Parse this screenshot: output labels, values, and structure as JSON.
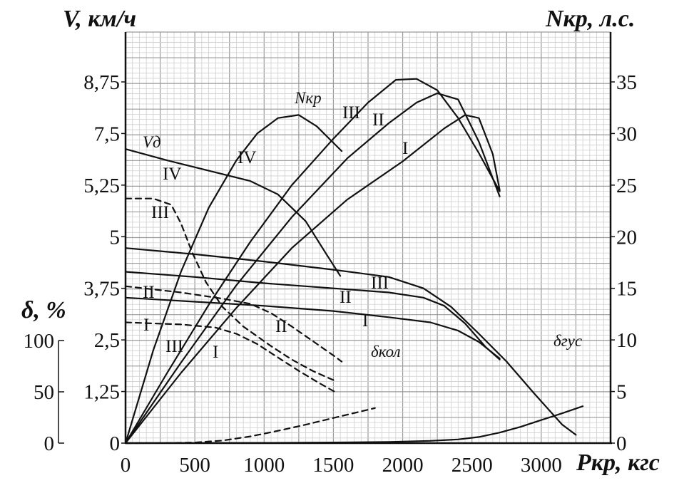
{
  "chart_data": {
    "type": "line",
    "title": "",
    "xlabel": "Pкр, кгс",
    "y_left_label": "V, км/ч",
    "y_right_label": "Nкр, л.с.",
    "delta_label": "δ, %",
    "x_ticks": [
      0,
      500,
      1000,
      1500,
      2000,
      2500,
      3000
    ],
    "x_tick_labels": [
      "0",
      "500",
      "1000",
      "1500",
      "2000",
      "2500",
      "3000"
    ],
    "v_tick_labels": [
      "0",
      "1,25",
      "2,5",
      "3,75",
      "5",
      "5,25",
      "7,5",
      "8,75"
    ],
    "n_ticks": [
      0,
      5,
      10,
      15,
      20,
      25,
      30,
      35
    ],
    "n_tick_labels": [
      "0",
      "5",
      "10",
      "15",
      "20",
      "25",
      "30",
      "35"
    ],
    "delta_ticks": [
      0,
      50,
      100
    ],
    "delta_tick_labels": [
      "0",
      "50",
      "100"
    ],
    "xlim": [
      0,
      3500
    ],
    "nlim": [
      0,
      35
    ],
    "grid": true,
    "series": [
      {
        "name": "Vд",
        "group": "V",
        "style": "solid",
        "label": "IV",
        "points": [
          [
            0,
            28.5
          ],
          [
            300,
            27.4
          ],
          [
            600,
            26.4
          ],
          [
            900,
            25.4
          ],
          [
            1100,
            24.1
          ],
          [
            1300,
            21.5
          ],
          [
            1450,
            18.3
          ],
          [
            1550,
            16.2
          ]
        ]
      },
      {
        "group": "V",
        "style": "solid",
        "label": "III",
        "points": [
          [
            0,
            18.9
          ],
          [
            500,
            18.3
          ],
          [
            1000,
            17.6
          ],
          [
            1500,
            16.8
          ],
          [
            1900,
            16.1
          ],
          [
            2150,
            15.0
          ],
          [
            2350,
            13.2
          ],
          [
            2550,
            10.6
          ],
          [
            2750,
            7.9
          ],
          [
            2950,
            4.8
          ],
          [
            3150,
            1.8
          ],
          [
            3250,
            0.8
          ]
        ]
      },
      {
        "group": "V",
        "style": "solid",
        "label": "II",
        "points": [
          [
            0,
            16.6
          ],
          [
            500,
            16.1
          ],
          [
            1000,
            15.5
          ],
          [
            1500,
            15.0
          ],
          [
            1900,
            14.6
          ],
          [
            2150,
            14.1
          ],
          [
            2300,
            13.3
          ],
          [
            2450,
            11.6
          ],
          [
            2600,
            9.3
          ],
          [
            2700,
            8.1
          ]
        ]
      },
      {
        "group": "V",
        "style": "solid",
        "label": "I",
        "points": [
          [
            0,
            14.1
          ],
          [
            500,
            13.7
          ],
          [
            1000,
            13.3
          ],
          [
            1500,
            12.8
          ],
          [
            1900,
            12.2
          ],
          [
            2200,
            11.7
          ],
          [
            2400,
            10.9
          ],
          [
            2550,
            9.8
          ],
          [
            2700,
            8.2
          ]
        ]
      },
      {
        "group": "V",
        "style": "dashed",
        "label": "III",
        "points": [
          [
            0,
            23.7
          ],
          [
            200,
            23.7
          ],
          [
            330,
            23.1
          ],
          [
            400,
            21.3
          ],
          [
            480,
            18.5
          ],
          [
            580,
            15.6
          ],
          [
            700,
            13.2
          ],
          [
            850,
            11.3
          ],
          [
            1050,
            9.4
          ],
          [
            1200,
            8.1
          ],
          [
            1350,
            7.0
          ],
          [
            1450,
            6.4
          ],
          [
            1520,
            6.0
          ]
        ]
      },
      {
        "group": "V",
        "style": "dashed",
        "label": "II",
        "points": [
          [
            0,
            15.2
          ],
          [
            400,
            14.6
          ],
          [
            700,
            14.0
          ],
          [
            900,
            13.5
          ],
          [
            1050,
            12.6
          ],
          [
            1200,
            11.3
          ],
          [
            1350,
            9.9
          ],
          [
            1500,
            8.5
          ],
          [
            1560,
            7.9
          ]
        ]
      },
      {
        "group": "V",
        "style": "dashed",
        "label": "I",
        "points": [
          [
            0,
            11.7
          ],
          [
            400,
            11.5
          ],
          [
            650,
            11.2
          ],
          [
            800,
            10.6
          ],
          [
            950,
            9.6
          ],
          [
            1100,
            8.3
          ],
          [
            1250,
            7.0
          ],
          [
            1400,
            5.8
          ],
          [
            1520,
            4.9
          ]
        ]
      },
      {
        "name": "Nкр",
        "group": "N",
        "style": "solid",
        "label": "IV",
        "points": [
          [
            0,
            0
          ],
          [
            200,
            9
          ],
          [
            400,
            16.6
          ],
          [
            600,
            22.8
          ],
          [
            800,
            27.4
          ],
          [
            950,
            30.0
          ],
          [
            1100,
            31.5
          ],
          [
            1250,
            31.8
          ],
          [
            1380,
            30.7
          ],
          [
            1500,
            29.1
          ],
          [
            1560,
            28.3
          ]
        ]
      },
      {
        "group": "N",
        "style": "solid",
        "label": "III",
        "points": [
          [
            0,
            0
          ],
          [
            300,
            6.8
          ],
          [
            600,
            13.4
          ],
          [
            900,
            19.5
          ],
          [
            1200,
            25.0
          ],
          [
            1500,
            29.5
          ],
          [
            1750,
            33.0
          ],
          [
            1950,
            35.2
          ],
          [
            2100,
            35.3
          ],
          [
            2250,
            34.2
          ],
          [
            2400,
            31.5
          ],
          [
            2550,
            28.1
          ],
          [
            2700,
            24.4
          ]
        ]
      },
      {
        "group": "N",
        "style": "solid",
        "label": "II",
        "points": [
          [
            0,
            0
          ],
          [
            400,
            7.8
          ],
          [
            800,
            15.3
          ],
          [
            1200,
            21.9
          ],
          [
            1600,
            27.6
          ],
          [
            1900,
            31.0
          ],
          [
            2100,
            33.0
          ],
          [
            2250,
            33.9
          ],
          [
            2400,
            33.3
          ],
          [
            2550,
            29.2
          ],
          [
            2700,
            23.9
          ]
        ]
      },
      {
        "group": "N",
        "style": "solid",
        "label": "I",
        "points": [
          [
            0,
            0
          ],
          [
            400,
            6.8
          ],
          [
            800,
            13.1
          ],
          [
            1200,
            18.9
          ],
          [
            1600,
            23.6
          ],
          [
            2000,
            27.3
          ],
          [
            2300,
            30.5
          ],
          [
            2450,
            31.8
          ],
          [
            2550,
            31.5
          ],
          [
            2650,
            28.0
          ],
          [
            2700,
            24.5
          ]
        ]
      },
      {
        "name": "δгус",
        "group": "delta",
        "style": "solid",
        "points": [
          [
            0,
            0
          ],
          [
            500,
            0.15
          ],
          [
            1000,
            0.3
          ],
          [
            1500,
            0.6
          ],
          [
            1900,
            1.2
          ],
          [
            2200,
            2.2
          ],
          [
            2400,
            3.6
          ],
          [
            2550,
            6.0
          ],
          [
            2700,
            10.3
          ],
          [
            2850,
            15.8
          ],
          [
            3000,
            22.5
          ],
          [
            3150,
            29
          ],
          [
            3300,
            36
          ]
        ]
      },
      {
        "name": "δкол",
        "group": "delta",
        "style": "dashed",
        "points": [
          [
            0,
            0
          ],
          [
            300,
            0.1
          ],
          [
            500,
            0.6
          ],
          [
            700,
            2.5
          ],
          [
            900,
            6.5
          ],
          [
            1100,
            12
          ],
          [
            1300,
            18
          ],
          [
            1500,
            24.5
          ],
          [
            1700,
            31
          ],
          [
            1800,
            34.2
          ]
        ]
      }
    ],
    "annotations": {
      "v_iv": "IV",
      "v_iii": "III",
      "v_ii": "II",
      "v_i": "I",
      "vd_iii": "III",
      "vd_ii": "II",
      "vd_i": "I",
      "vd_iii_low": "III",
      "vd_ii_low": "II",
      "vd_i_low": "I",
      "n_iv": "IV",
      "n_iii": "III",
      "n_ii": "II",
      "n_i": "I",
      "vd_name": "Vд",
      "nkr_name": "Nкр",
      "dkol_name": "δкол",
      "dgus_name": "δгус"
    }
  }
}
